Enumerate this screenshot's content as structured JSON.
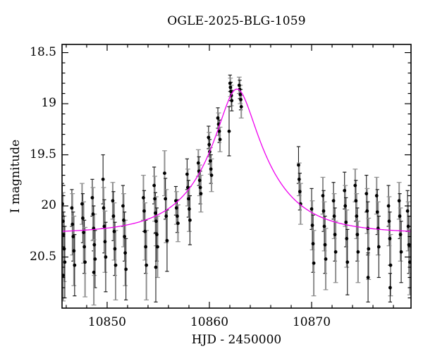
{
  "figure": {
    "title": "OGLE-2025-BLG-1059",
    "xlabel": "HJD - 2450000",
    "ylabel": "I magnitude"
  },
  "chart_data": {
    "type": "scatter",
    "title": "OGLE-2025-BLG-1059",
    "xlabel": "HJD - 2450000",
    "ylabel": "I magnitude",
    "y_axis_inverted": true,
    "grid": false,
    "legend": false,
    "xlim": [
      10845.59,
      10879.72
    ],
    "ylim": [
      21.0,
      18.42
    ],
    "xticks": {
      "major": [
        10850,
        10860,
        10870
      ],
      "labels": [
        "10850",
        "10860",
        "10870"
      ],
      "minor_start": 10846,
      "minor_end": 10878,
      "minor_step": 2
    },
    "yticks": {
      "major": [
        18.5,
        19.0,
        19.5,
        20.0,
        20.5
      ],
      "labels": [
        "18.5",
        "19",
        "19.5",
        "20",
        "20.5"
      ],
      "minor_start": 18.5,
      "minor_end": 20.9,
      "minor_step": 0.1
    },
    "colors": {
      "curve": "#ee00ee",
      "point": "#000000",
      "errorbar_dark": "#1c1c1c",
      "errorbar_light": "#8f8f8f",
      "axis": "#000000",
      "background": "#ffffff"
    },
    "model_curve": {
      "model": "paczynski-point-lens",
      "baseline_mag": 20.27,
      "peak_mag": 18.87,
      "t0": 10862.7,
      "tE": 6.0,
      "u0": 0.28
    },
    "points_format": [
      "t_hjd_minus_2450000",
      "I_magnitude",
      "error",
      "bar_style"
    ],
    "points": [
      [
        10845.62,
        19.98,
        0.2,
        0
      ],
      [
        10845.68,
        20.15,
        0.28,
        1
      ],
      [
        10845.74,
        20.28,
        0.22,
        0
      ],
      [
        10845.8,
        20.42,
        0.32,
        1
      ],
      [
        10845.86,
        20.55,
        0.35,
        0
      ],
      [
        10845.7,
        20.68,
        0.25,
        1
      ],
      [
        10846.55,
        20.02,
        0.18,
        0
      ],
      [
        10846.61,
        20.18,
        0.3,
        1
      ],
      [
        10846.68,
        20.3,
        0.24,
        0
      ],
      [
        10846.75,
        20.44,
        0.34,
        1
      ],
      [
        10846.82,
        20.58,
        0.3,
        0
      ],
      [
        10847.55,
        19.98,
        0.2,
        1
      ],
      [
        10847.62,
        20.12,
        0.24,
        0
      ],
      [
        10847.7,
        20.26,
        0.3,
        1
      ],
      [
        10847.77,
        20.4,
        0.26,
        0
      ],
      [
        10847.84,
        20.55,
        0.34,
        1
      ],
      [
        10848.55,
        19.92,
        0.18,
        0
      ],
      [
        10848.62,
        20.08,
        0.26,
        1
      ],
      [
        10848.68,
        20.22,
        0.22,
        0
      ],
      [
        10848.75,
        20.38,
        0.3,
        1
      ],
      [
        10848.82,
        20.52,
        0.28,
        0
      ],
      [
        10848.7,
        20.65,
        0.32,
        1
      ],
      [
        10849.6,
        19.74,
        0.24,
        0
      ],
      [
        10849.66,
        20.02,
        0.2,
        1
      ],
      [
        10849.72,
        20.2,
        0.26,
        0
      ],
      [
        10849.79,
        20.35,
        0.3,
        1
      ],
      [
        10849.86,
        20.5,
        0.34,
        0
      ],
      [
        10850.55,
        19.95,
        0.18,
        1
      ],
      [
        10850.62,
        20.1,
        0.24,
        0
      ],
      [
        10850.69,
        20.25,
        0.28,
        1
      ],
      [
        10850.76,
        20.42,
        0.26,
        0
      ],
      [
        10850.83,
        20.58,
        0.34,
        1
      ],
      [
        10851.55,
        20.0,
        0.2,
        0
      ],
      [
        10851.62,
        20.14,
        0.26,
        1
      ],
      [
        10851.7,
        20.3,
        0.24,
        0
      ],
      [
        10851.77,
        20.46,
        0.32,
        1
      ],
      [
        10851.84,
        20.62,
        0.3,
        0
      ],
      [
        10853.55,
        19.92,
        0.22,
        1
      ],
      [
        10853.62,
        20.05,
        0.2,
        0
      ],
      [
        10853.7,
        20.25,
        0.28,
        1
      ],
      [
        10853.77,
        20.4,
        0.26,
        0
      ],
      [
        10853.84,
        20.58,
        0.34,
        1
      ],
      [
        10854.6,
        19.8,
        0.18,
        0
      ],
      [
        10854.66,
        19.93,
        0.22,
        1
      ],
      [
        10854.72,
        20.07,
        0.2,
        0
      ],
      [
        10854.79,
        20.15,
        0.24,
        1
      ],
      [
        10854.86,
        20.28,
        0.26,
        0
      ],
      [
        10854.93,
        20.4,
        0.3,
        1
      ],
      [
        10854.76,
        20.6,
        0.34,
        0
      ],
      [
        10855.62,
        19.68,
        0.22,
        1
      ],
      [
        10855.7,
        19.93,
        0.2,
        0
      ],
      [
        10855.78,
        20.1,
        0.26,
        1
      ],
      [
        10855.86,
        20.34,
        0.3,
        0
      ],
      [
        10856.72,
        19.95,
        0.14,
        0
      ],
      [
        10856.78,
        20.02,
        0.16,
        1
      ],
      [
        10856.86,
        20.1,
        0.16,
        0
      ],
      [
        10856.93,
        20.17,
        0.18,
        1
      ],
      [
        10857.82,
        19.69,
        0.15,
        0
      ],
      [
        10857.89,
        19.82,
        0.18,
        1
      ],
      [
        10857.96,
        19.93,
        0.18,
        0
      ],
      [
        10858.03,
        20.03,
        0.22,
        1
      ],
      [
        10858.1,
        20.14,
        0.24,
        0
      ],
      [
        10858.92,
        19.58,
        0.13,
        1
      ],
      [
        10858.98,
        19.66,
        0.14,
        0
      ],
      [
        10859.05,
        19.75,
        0.15,
        1
      ],
      [
        10859.11,
        19.82,
        0.16,
        0
      ],
      [
        10859.17,
        19.88,
        0.18,
        1
      ],
      [
        10859.92,
        19.33,
        0.11,
        0
      ],
      [
        10859.98,
        19.4,
        0.12,
        1
      ],
      [
        10860.03,
        19.47,
        0.12,
        0
      ],
      [
        10860.09,
        19.56,
        0.13,
        1
      ],
      [
        10860.15,
        19.64,
        0.14,
        0
      ],
      [
        10860.21,
        19.7,
        0.16,
        1
      ],
      [
        10860.83,
        19.14,
        0.1,
        0
      ],
      [
        10860.9,
        19.2,
        0.11,
        1
      ],
      [
        10860.97,
        19.27,
        0.11,
        0
      ],
      [
        10861.04,
        19.35,
        0.12,
        1
      ],
      [
        10861.93,
        19.27,
        0.24,
        0
      ],
      [
        10862.02,
        18.8,
        0.08,
        0
      ],
      [
        10862.06,
        18.84,
        0.09,
        1
      ],
      [
        10862.1,
        18.88,
        0.09,
        0
      ],
      [
        10862.15,
        18.92,
        0.1,
        1
      ],
      [
        10862.19,
        18.97,
        0.1,
        0
      ],
      [
        10862.92,
        18.82,
        0.08,
        1
      ],
      [
        10862.97,
        18.86,
        0.09,
        0
      ],
      [
        10863.02,
        18.91,
        0.09,
        1
      ],
      [
        10863.07,
        18.96,
        0.1,
        0
      ],
      [
        10863.12,
        19.03,
        0.11,
        1
      ],
      [
        10868.72,
        19.6,
        0.18,
        0
      ],
      [
        10868.78,
        19.74,
        0.16,
        1
      ],
      [
        10868.85,
        19.86,
        0.18,
        0
      ],
      [
        10868.92,
        19.98,
        0.2,
        1
      ],
      [
        10870.0,
        20.03,
        0.2,
        0
      ],
      [
        10870.07,
        20.19,
        0.24,
        1
      ],
      [
        10870.14,
        20.37,
        0.28,
        0
      ],
      [
        10870.21,
        20.56,
        0.32,
        1
      ],
      [
        10871.1,
        19.9,
        0.18,
        1
      ],
      [
        10871.17,
        20.05,
        0.2,
        0
      ],
      [
        10871.24,
        20.2,
        0.24,
        1
      ],
      [
        10871.31,
        20.38,
        0.28,
        0
      ],
      [
        10871.38,
        20.52,
        0.3,
        1
      ],
      [
        10872.14,
        19.95,
        0.18,
        0
      ],
      [
        10872.21,
        20.1,
        0.22,
        1
      ],
      [
        10872.28,
        20.28,
        0.26,
        0
      ],
      [
        10872.35,
        20.45,
        0.3,
        1
      ],
      [
        10873.22,
        19.85,
        0.18,
        0
      ],
      [
        10873.29,
        20.0,
        0.2,
        1
      ],
      [
        10873.36,
        20.16,
        0.24,
        0
      ],
      [
        10873.43,
        20.32,
        0.28,
        1
      ],
      [
        10873.5,
        20.55,
        0.32,
        0
      ],
      [
        10874.26,
        19.8,
        0.16,
        1
      ],
      [
        10874.33,
        19.95,
        0.2,
        0
      ],
      [
        10874.4,
        20.1,
        0.22,
        1
      ],
      [
        10874.47,
        20.28,
        0.26,
        0
      ],
      [
        10874.54,
        20.45,
        0.3,
        1
      ],
      [
        10875.36,
        19.88,
        0.18,
        0
      ],
      [
        10875.43,
        20.05,
        0.22,
        1
      ],
      [
        10875.5,
        20.22,
        0.26,
        0
      ],
      [
        10875.57,
        20.42,
        0.3,
        1
      ],
      [
        10875.52,
        20.7,
        0.24,
        0
      ],
      [
        10876.36,
        19.9,
        0.18,
        1
      ],
      [
        10876.43,
        20.06,
        0.22,
        0
      ],
      [
        10876.5,
        20.22,
        0.26,
        1
      ],
      [
        10876.57,
        20.4,
        0.3,
        0
      ],
      [
        10877.52,
        20.0,
        0.2,
        0
      ],
      [
        10877.58,
        20.15,
        0.24,
        1
      ],
      [
        10877.65,
        20.32,
        0.26,
        0
      ],
      [
        10877.72,
        20.58,
        0.3,
        1
      ],
      [
        10877.68,
        20.8,
        0.14,
        0
      ],
      [
        10878.56,
        19.95,
        0.18,
        1
      ],
      [
        10878.62,
        20.1,
        0.22,
        0
      ],
      [
        10878.69,
        20.28,
        0.26,
        1
      ],
      [
        10878.76,
        20.45,
        0.3,
        0
      ],
      [
        10879.38,
        20.05,
        0.2,
        0
      ],
      [
        10879.45,
        20.2,
        0.24,
        1
      ],
      [
        10879.52,
        20.38,
        0.28,
        0
      ],
      [
        10879.6,
        20.55,
        0.32,
        1
      ]
    ]
  }
}
